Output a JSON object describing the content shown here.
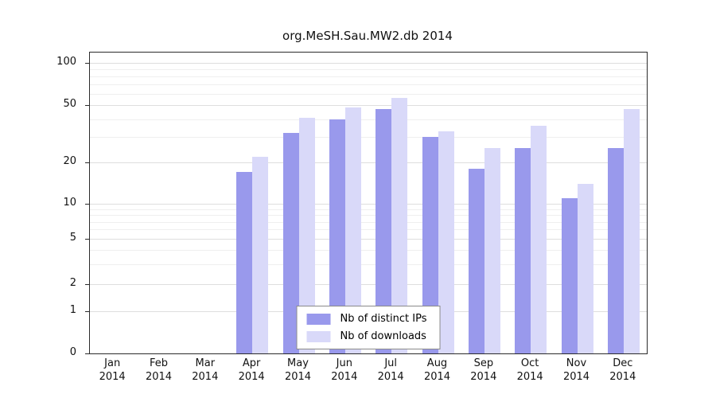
{
  "title": "org.MeSH.Sau.MW2.db 2014",
  "chart_data": {
    "type": "bar",
    "title": "org.MeSH.Sau.MW2.db 2014",
    "categories": [
      "Jan",
      "Feb",
      "Mar",
      "Apr",
      "May",
      "Jun",
      "Jul",
      "Aug",
      "Sep",
      "Oct",
      "Nov",
      "Dec"
    ],
    "year": "2014",
    "series": [
      {
        "name": "Nb of distinct IPs",
        "color": "#9999ec",
        "values": [
          0,
          0,
          0,
          17,
          32,
          40,
          47,
          30,
          18,
          25,
          11,
          25
        ]
      },
      {
        "name": "Nb of downloads",
        "color": "#d9d9f9",
        "values": [
          0,
          0,
          0,
          22,
          41,
          48,
          56,
          33,
          25,
          36,
          14,
          47
        ]
      }
    ],
    "y_ticks": [
      100,
      50,
      20,
      10,
      5,
      2,
      1,
      0
    ],
    "y_scale": "log-like",
    "ylim": [
      0,
      110
    ],
    "grid": true,
    "legend_position": "bottom-center"
  }
}
